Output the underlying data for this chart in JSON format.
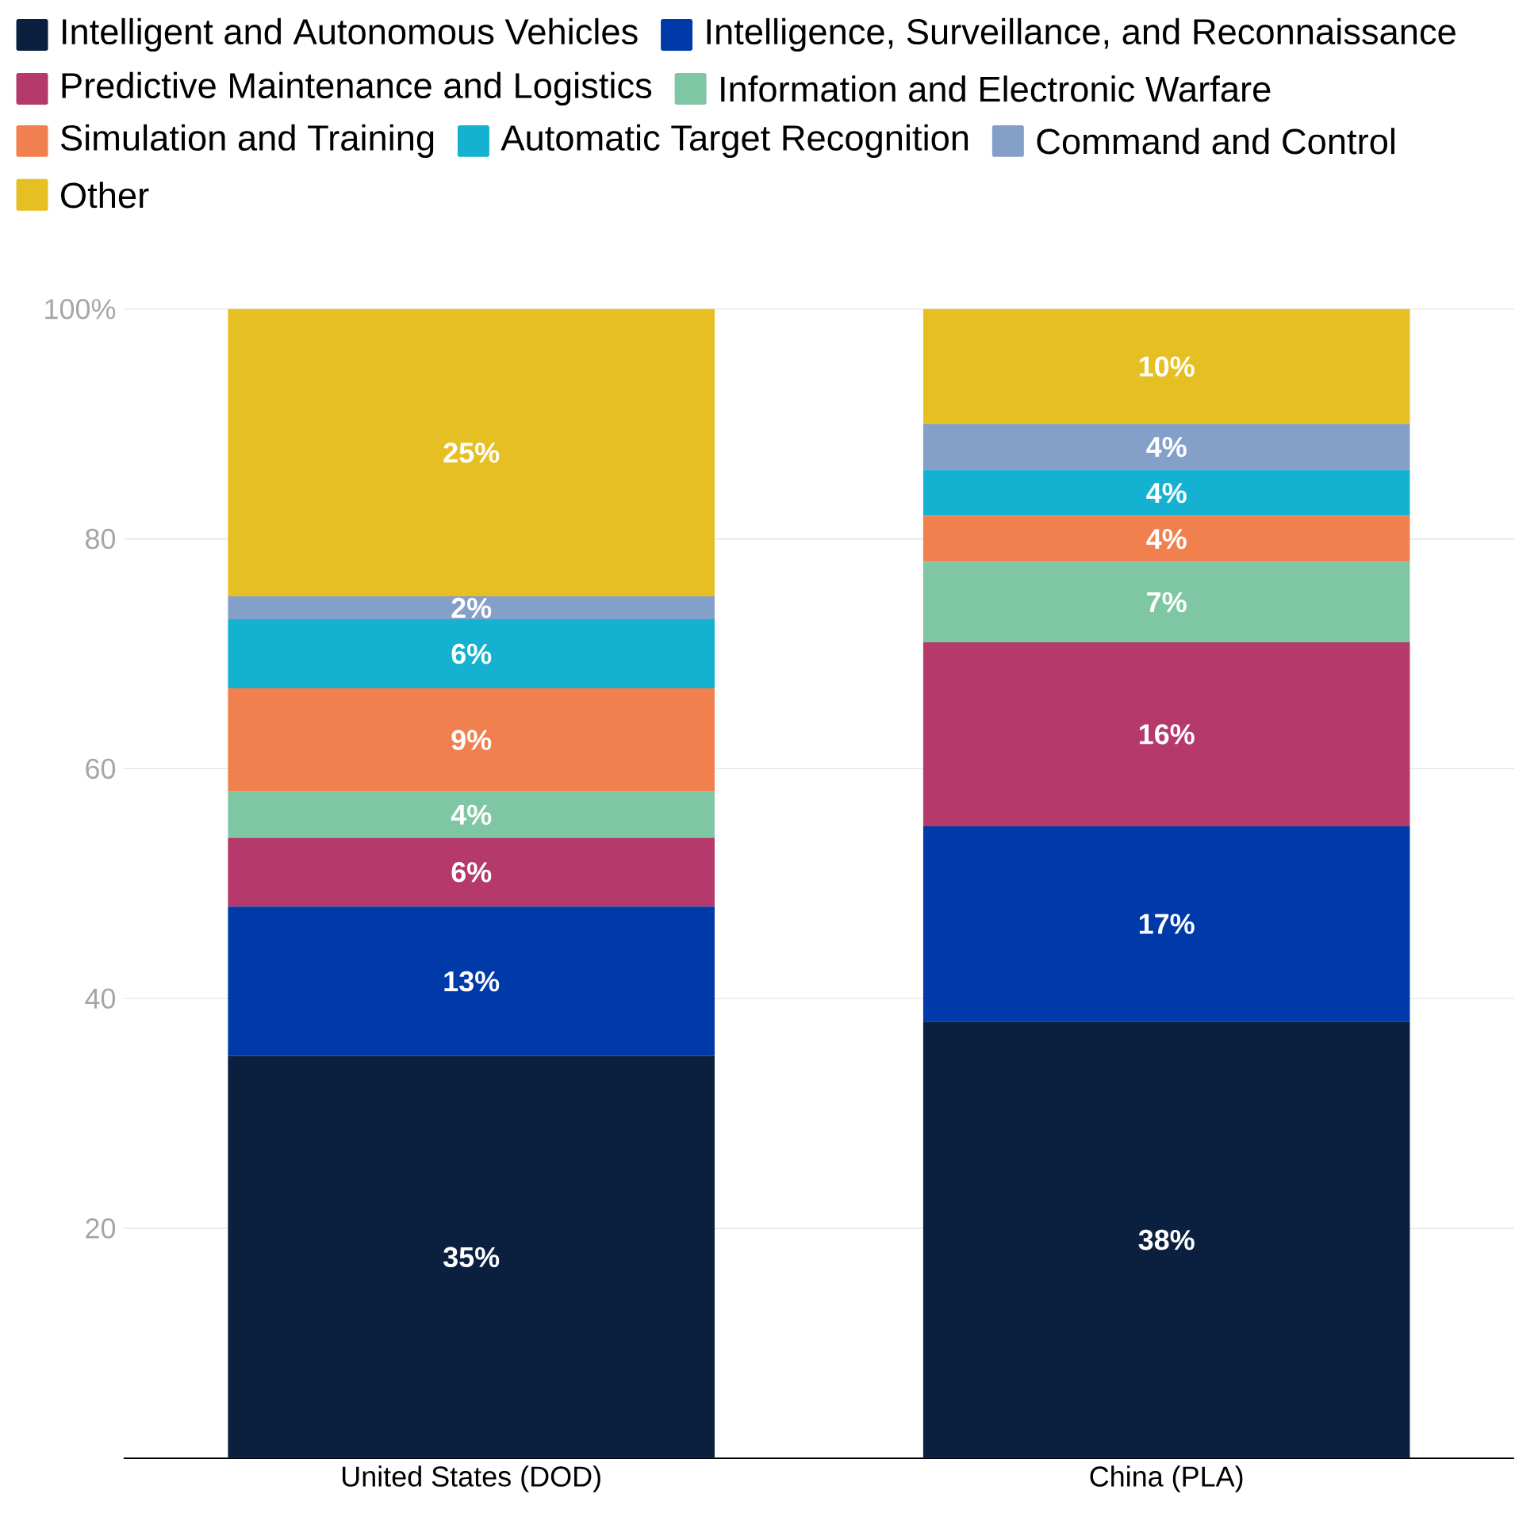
{
  "chart_data": {
    "type": "bar",
    "stacked": true,
    "categories": [
      "United States (DOD)",
      "China (PLA)"
    ],
    "series": [
      {
        "name": "Intelligent and Autonomous Vehicles",
        "color": "#0b1f3f",
        "values": [
          35,
          38
        ],
        "value_labels": [
          "35%",
          "38%"
        ]
      },
      {
        "name": "Intelligence, Surveillance, and Reconnaissance",
        "color": "#003aa8",
        "values": [
          13,
          17
        ],
        "value_labels": [
          "13%",
          "17%"
        ]
      },
      {
        "name": "Predictive Maintenance and Logistics",
        "color": "#b5396b",
        "values": [
          6,
          16
        ],
        "value_labels": [
          "6%",
          "16%"
        ]
      },
      {
        "name": "Information and Electronic Warfare",
        "color": "#7fc6a4",
        "values": [
          4,
          7
        ],
        "value_labels": [
          "4%",
          "7%"
        ]
      },
      {
        "name": "Simulation and Training",
        "color": "#f0804e",
        "values": [
          9,
          4
        ],
        "value_labels": [
          "9%",
          "4%"
        ]
      },
      {
        "name": "Automatic Target Recognition",
        "color": "#14b2d0",
        "values": [
          6,
          4
        ],
        "value_labels": [
          "6%",
          "4%"
        ]
      },
      {
        "name": "Command and Control",
        "color": "#849fc8",
        "values": [
          2,
          4
        ],
        "value_labels": [
          "2%",
          "4%"
        ]
      },
      {
        "name": "Other",
        "color": "#e6bf23",
        "values": [
          25,
          10
        ],
        "value_labels": [
          "25%",
          "10%"
        ]
      }
    ],
    "ylim": [
      0,
      100
    ],
    "yticks": [
      20,
      40,
      60,
      80,
      {
        "value": 100,
        "label": "100%"
      }
    ],
    "grid": "y",
    "legend": "top"
  }
}
